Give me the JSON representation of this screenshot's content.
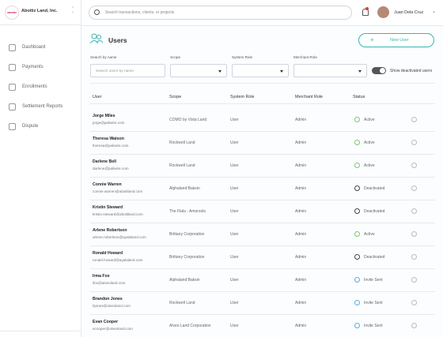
{
  "sidebar": {
    "org": "Aboitiz Land, Inc.",
    "logo": "ABOITIZ",
    "nav": [
      "Dashboard",
      "Payments",
      "Enrollments",
      "Settlement Reports",
      "Dispute"
    ]
  },
  "topbar": {
    "search_placeholder": "Search transactions, clients, or projects",
    "user": "Juan Dela Cruz"
  },
  "page": {
    "title": "Users",
    "new_button": "New User"
  },
  "filters": {
    "search_label": "Search by name",
    "search_placeholder": "Search users by name",
    "scope_label": "Scope",
    "system_role_label": "System Role",
    "merchant_role_label": "Merchant Role",
    "toggle_label": "Show deactivated users"
  },
  "table": {
    "columns": [
      "User",
      "Scope",
      "System Role",
      "Merchant Role",
      "Status"
    ],
    "rows": [
      {
        "name": "Jorge Miles",
        "email": "jorge@paliwire.com",
        "scope": "COMO by Vista Land",
        "system_role": "User",
        "merchant_role": "Admin",
        "status": "Active",
        "status_color": "#7cc96b"
      },
      {
        "name": "Theresa Watson",
        "email": "theresa@paliwire.com",
        "scope": "Rockwell Land",
        "system_role": "User",
        "merchant_role": "Admin",
        "status": "Active",
        "status_color": "#7cc96b"
      },
      {
        "name": "Darlene Bell",
        "email": "darlene@paliwire.com",
        "scope": "Rockwell Land",
        "system_role": "User",
        "merchant_role": "Admin",
        "status": "Active",
        "status_color": "#7cc96b"
      },
      {
        "name": "Connie Warren",
        "email": "connie.warren@aboitiland.com",
        "scope": "Alphaland Baksin",
        "system_role": "User",
        "merchant_role": "Admin",
        "status": "Deactivated",
        "status_color": "#444444"
      },
      {
        "name": "Kristin Steward",
        "email": "kristin.steward@aboitiland.com",
        "scope": "The Flats - Amorsolo",
        "system_role": "User",
        "merchant_role": "Admin",
        "status": "Deactivated",
        "status_color": "#444444"
      },
      {
        "name": "Arlene Robertson",
        "email": "arlene.robertson@ayalaland.com",
        "scope": "Brittany Corporation",
        "system_role": "User",
        "merchant_role": "Admin",
        "status": "Active",
        "status_color": "#7cc96b"
      },
      {
        "name": "Ronald Howard",
        "email": "ronald.howard@ayalaland.com",
        "scope": "Brittany Corporation",
        "system_role": "User",
        "merchant_role": "Admin",
        "status": "Deactivated",
        "status_color": "#444444"
      },
      {
        "name": "Irma Fox",
        "email": "ifox@alveoland.com",
        "scope": "Alphaland Baksin",
        "system_role": "User",
        "merchant_role": "Admin",
        "status": "Invite Sent",
        "status_color": "#5aaee0"
      },
      {
        "name": "Brandon Jones",
        "email": "bjones@alveoland.com",
        "scope": "Rockwell Land",
        "system_role": "User",
        "merchant_role": "Admin",
        "status": "Invite Sent",
        "status_color": "#5aaee0"
      },
      {
        "name": "Evan Cooper",
        "email": "ecooper@alveoland.com",
        "scope": "Alveo Land Corporation",
        "system_role": "User",
        "merchant_role": "Admin",
        "status": "Invite Sent",
        "status_color": "#5aaee0"
      }
    ]
  }
}
